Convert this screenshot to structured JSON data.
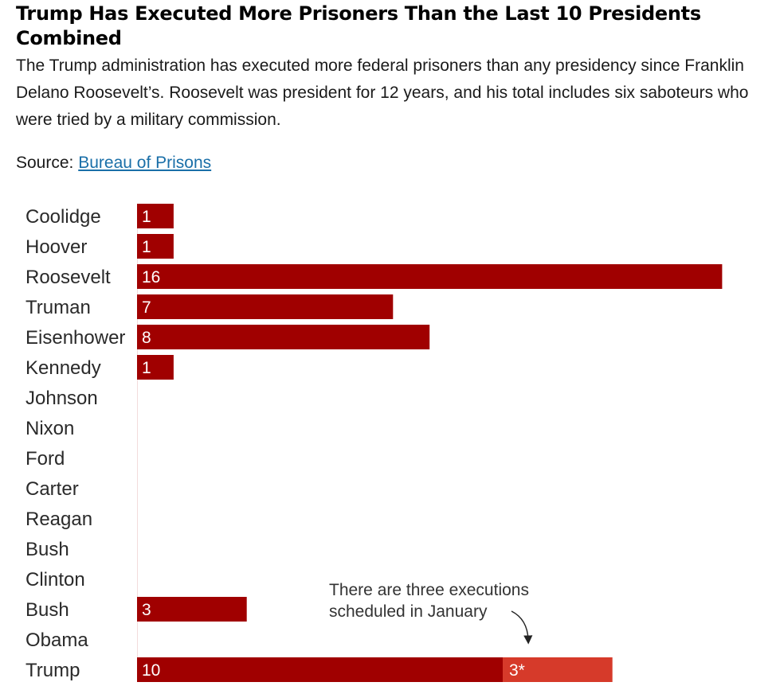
{
  "header": {
    "title": "Trump Has Executed More Prisoners Than the Last 10 Presidents Combined",
    "subtitle": "The Trump administration has executed more federal prisoners than any presidency since Franklin Delano Roosevelt’s. Roosevelt was president for 12 years, and his total includes six saboteurs who were tried by a military commission.",
    "source_prefix": "Source:",
    "source_link": "Bureau of Prisons"
  },
  "colors": {
    "bar": "#a00000",
    "bar_scheduled": "#d63a2a",
    "baseline": "#f2dcdc"
  },
  "chart_data": {
    "type": "bar",
    "orientation": "horizontal",
    "stacked": true,
    "categories": [
      "Coolidge",
      "Hoover",
      "Roosevelt",
      "Truman",
      "Eisenhower",
      "Kennedy",
      "Johnson",
      "Nixon",
      "Ford",
      "Carter",
      "Reagan",
      "Bush",
      "Clinton",
      "Bush",
      "Obama",
      "Trump"
    ],
    "series": [
      {
        "values": [
          1,
          1,
          16,
          7,
          8,
          1,
          0,
          0,
          0,
          0,
          0,
          0,
          0,
          3,
          0,
          10
        ],
        "labels": [
          "1",
          "1",
          "16",
          "7",
          "8",
          "1",
          "",
          "",
          "",
          "",
          "",
          "",
          "",
          "3",
          "",
          "10"
        ]
      },
      {
        "values": [
          0,
          0,
          0,
          0,
          0,
          0,
          0,
          0,
          0,
          0,
          0,
          0,
          0,
          0,
          0,
          3
        ],
        "labels": [
          "",
          "",
          "",
          "",
          "",
          "",
          "",
          "",
          "",
          "",
          "",
          "",
          "",
          "",
          "",
          "3*"
        ]
      }
    ],
    "annotation": {
      "lines": [
        "There are three executions",
        "scheduled in January"
      ],
      "category": "Trump"
    }
  }
}
